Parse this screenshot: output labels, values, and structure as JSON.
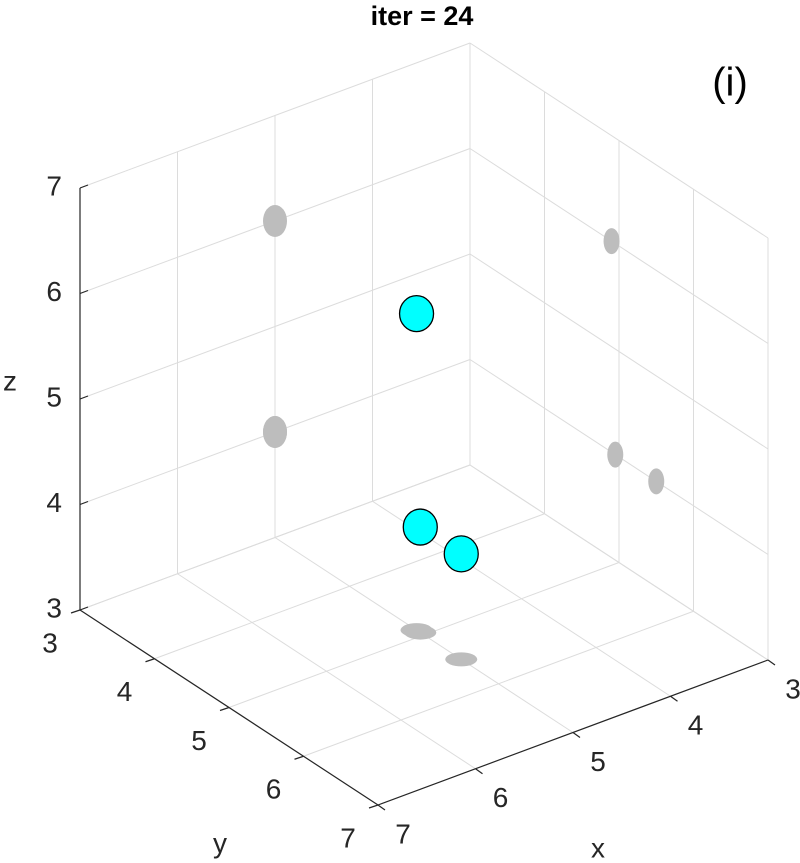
{
  "chart_data": {
    "type": "scatter3d",
    "title": "iter = 24",
    "annotation": "(i)",
    "xlabel": "x",
    "ylabel": "y",
    "zlabel": "z",
    "xlim": [
      3,
      7
    ],
    "ylim": [
      3,
      7
    ],
    "zlim": [
      3,
      7
    ],
    "xticks": [
      3,
      4,
      5,
      6,
      7
    ],
    "yticks": [
      3,
      4,
      5,
      6,
      7
    ],
    "zticks": [
      3,
      4,
      5,
      6,
      7
    ],
    "grid": true,
    "projection_color": "#bdbdbd",
    "series": [
      {
        "color": "#00ffff",
        "x": [
          5,
          5,
          5
        ],
        "y": [
          4.9,
          4.95,
          5.5
        ],
        "z": [
          6,
          4,
          4
        ]
      }
    ]
  }
}
